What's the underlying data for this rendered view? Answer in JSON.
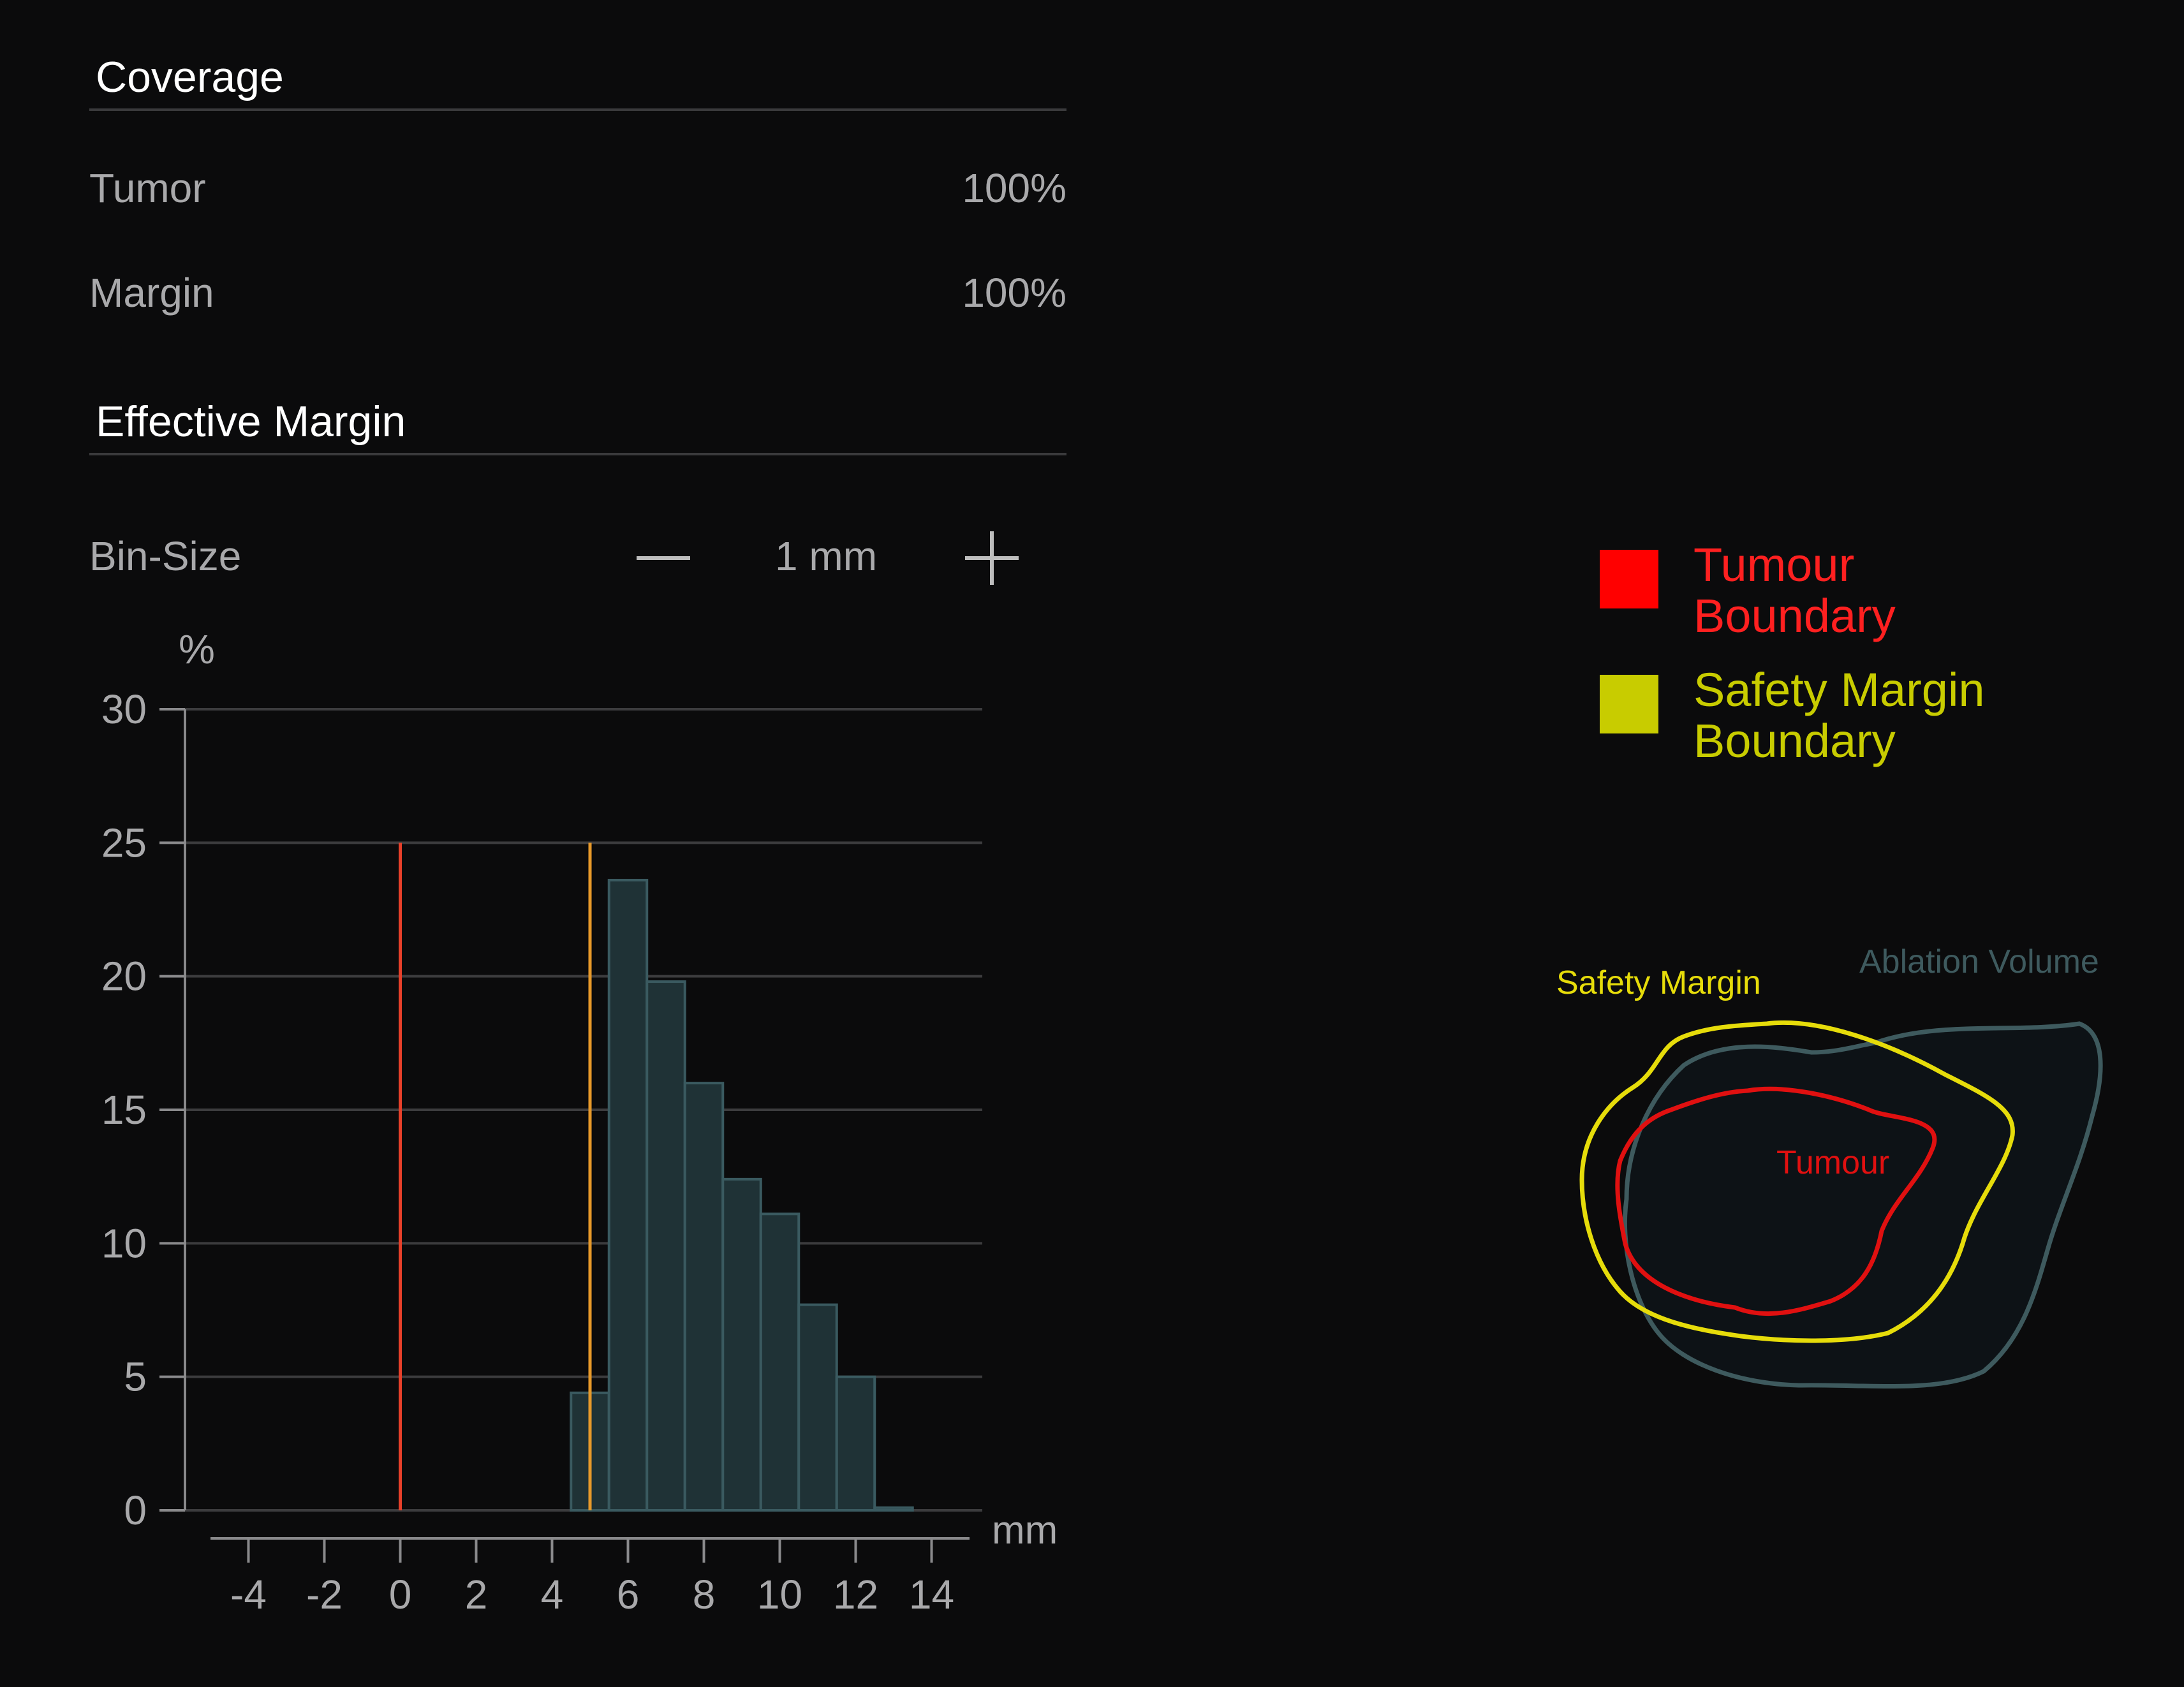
{
  "coverage": {
    "title": "Coverage",
    "rows": [
      {
        "label": "Tumor",
        "value": "100%"
      },
      {
        "label": "Margin",
        "value": "100%"
      }
    ]
  },
  "effective_margin": {
    "title": "Effective Margin",
    "bin_size": {
      "label": "Bin-Size",
      "value": "1 mm",
      "minus_icon": "minus-icon",
      "plus_icon": "plus-icon"
    }
  },
  "legend": {
    "tumour": {
      "line1": "Tumour",
      "line2": "Boundary",
      "color": "#ff0000"
    },
    "safety": {
      "line1": "Safety Margin",
      "line2": "Boundary",
      "color": "#c8cc00"
    }
  },
  "diagram": {
    "safety_label": "Safety Margin",
    "ablation_label": "Ablation Volume",
    "tumour_label": "Tumour",
    "colors": {
      "safety": "#e6dc0a",
      "ablation": "#3e5a5e",
      "tumour": "#e01010"
    }
  },
  "chart_data": {
    "type": "bar",
    "ylabel": "%",
    "xlabel": "mm",
    "ylim": [
      0,
      30
    ],
    "xlim": [
      -5,
      15
    ],
    "yticks": [
      0,
      5,
      10,
      15,
      20,
      25,
      30
    ],
    "xticks": [
      -4,
      -2,
      0,
      2,
      4,
      6,
      8,
      10,
      12,
      14
    ],
    "bin_width": 1,
    "bins": [
      {
        "start": 4.5,
        "end": 5.5,
        "value": 4.4
      },
      {
        "start": 5.5,
        "end": 6.5,
        "value": 23.6
      },
      {
        "start": 6.5,
        "end": 7.5,
        "value": 19.8
      },
      {
        "start": 7.5,
        "end": 8.5,
        "value": 16.0
      },
      {
        "start": 8.5,
        "end": 9.5,
        "value": 12.4
      },
      {
        "start": 9.5,
        "end": 10.5,
        "value": 11.1
      },
      {
        "start": 10.5,
        "end": 11.5,
        "value": 7.7
      },
      {
        "start": 11.5,
        "end": 12.5,
        "value": 5.0
      },
      {
        "start": 12.5,
        "end": 13.5,
        "value": 0.1
      }
    ],
    "markers": [
      {
        "name": "Tumour Boundary",
        "x": 0,
        "y_top": 25,
        "color": "#e8402a"
      },
      {
        "name": "Safety Margin Boundary",
        "x": 5,
        "y_top": 25,
        "color": "#e89a2a"
      }
    ],
    "grid": true
  }
}
